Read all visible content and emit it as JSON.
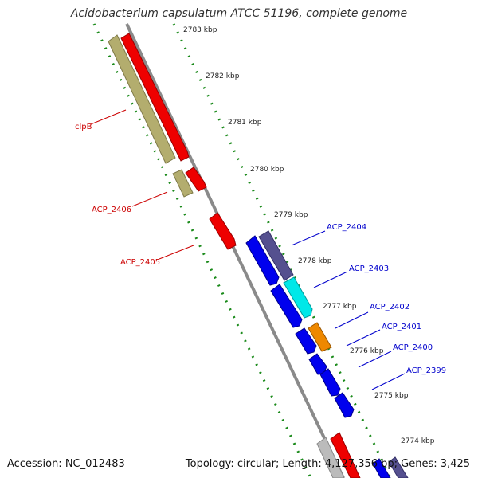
{
  "title": "Acidobacterium capsulatum ATCC 51196, complete genome",
  "footer": {
    "accession": "Accession: NC_012483",
    "topology": "Topology: circular; Length: 4,127,356 bp; Genes: 3,425"
  },
  "colors": {
    "backbone": "#8a8a8a",
    "tick_dots": "#1a8a1a",
    "forward_label": "#cc0000",
    "reverse_label": "#0000cc",
    "clpb_gene": "#b3ad6e",
    "red_gene": "#ee0000",
    "blue_gene": "#0000ee",
    "purple_gene": "#55508f",
    "cyan_gene": "#00e8e8",
    "orange_gene": "#ee8800",
    "gray_gene": "#bbbbbb"
  },
  "ticks": [
    "2783 kbp",
    "2782 kbp",
    "2781 kbp",
    "2780 kbp",
    "2779 kbp",
    "2778 kbp",
    "2777 kbp",
    "2776 kbp",
    "2775 kbp",
    "2774 kbp"
  ],
  "left_labels": [
    "clpB",
    "ACP_2406",
    "ACP_2405"
  ],
  "right_labels": [
    "ACP_2404",
    "ACP_2403",
    "ACP_2402",
    "ACP_2401",
    "ACP_2400",
    "ACP_2399"
  ]
}
